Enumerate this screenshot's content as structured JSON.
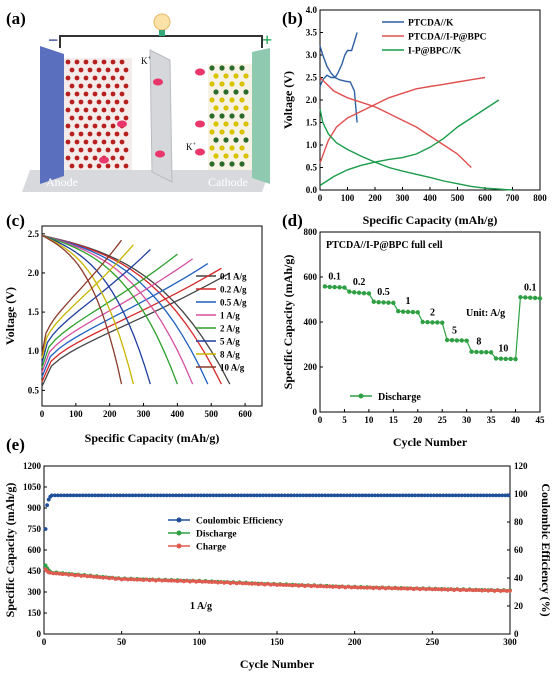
{
  "panels": {
    "a": {
      "label": "(a)",
      "anode_label": "Anode",
      "cathode_label": "Cathode",
      "ion_label_1": "K",
      "ion_label_2": "K",
      "ion_charge": "+",
      "minus_sign": "−",
      "plus_sign": "+"
    },
    "b": {
      "label": "(b)"
    },
    "c": {
      "label": "(c)"
    },
    "d": {
      "label": "(d)"
    },
    "e": {
      "label": "(e)"
    }
  },
  "colors": {
    "PTCDA_K": "#2e5fa3",
    "PTCDA_IPBPC": "#e0504f",
    "IP_BPC_K": "#1a9c4a",
    "d_series": "#2ea043",
    "e_ce": "#1f4e9b",
    "e_discharge": "#2ea043",
    "e_charge": "#e05a4f"
  },
  "chart_data": [
    {
      "id": "b",
      "type": "line",
      "xlabel": "Specific Capacity (mAh/g)",
      "ylabel": "Voltage (V)",
      "xlim": [
        0,
        800
      ],
      "ylim": [
        0,
        4.0
      ],
      "xticks": [
        0,
        100,
        200,
        300,
        400,
        500,
        600,
        700,
        800
      ],
      "yticks": [
        0.0,
        0.5,
        1.0,
        1.5,
        2.0,
        2.5,
        3.0,
        3.5,
        4.0
      ],
      "legend_position": "top-right",
      "series": [
        {
          "name": "PTCDA//K",
          "color_key": "PTCDA_K",
          "curves": [
            [
              [
                0,
                3.2
              ],
              [
                10,
                3.0
              ],
              [
                25,
                2.75
              ],
              [
                40,
                2.6
              ],
              [
                55,
                2.5
              ],
              [
                70,
                2.45
              ],
              [
                90,
                2.42
              ],
              [
                110,
                2.4
              ],
              [
                125,
                2.2
              ],
              [
                135,
                1.5
              ]
            ],
            [
              [
                0,
                2.3
              ],
              [
                10,
                2.45
              ],
              [
                25,
                2.55
              ],
              [
                40,
                2.5
              ],
              [
                55,
                2.5
              ],
              [
                65,
                2.6
              ],
              [
                80,
                2.8
              ],
              [
                90,
                3.0
              ],
              [
                100,
                3.1
              ],
              [
                115,
                3.1
              ],
              [
                125,
                3.3
              ],
              [
                135,
                3.5
              ]
            ]
          ]
        },
        {
          "name": "PTCDA//I-P@BPC",
          "color_key": "PTCDA_IPBPC",
          "curves": [
            [
              [
                0,
                2.5
              ],
              [
                50,
                2.2
              ],
              [
                100,
                2.05
              ],
              [
                150,
                1.95
              ],
              [
                200,
                1.85
              ],
              [
                250,
                1.7
              ],
              [
                300,
                1.55
              ],
              [
                350,
                1.4
              ],
              [
                400,
                1.2
              ],
              [
                450,
                1.0
              ],
              [
                500,
                0.8
              ],
              [
                550,
                0.5
              ]
            ],
            [
              [
                0,
                0.6
              ],
              [
                30,
                1.1
              ],
              [
                60,
                1.4
              ],
              [
                100,
                1.6
              ],
              [
                150,
                1.75
              ],
              [
                200,
                1.9
              ],
              [
                250,
                2.05
              ],
              [
                300,
                2.15
              ],
              [
                350,
                2.25
              ],
              [
                400,
                2.3
              ],
              [
                450,
                2.35
              ],
              [
                500,
                2.4
              ],
              [
                550,
                2.45
              ],
              [
                600,
                2.5
              ]
            ]
          ]
        },
        {
          "name": "I-P@BPC//K",
          "color_key": "IP_BPC_K",
          "curves": [
            [
              [
                0,
                1.8
              ],
              [
                10,
                1.5
              ],
              [
                30,
                1.25
              ],
              [
                60,
                1.05
              ],
              [
                100,
                0.9
              ],
              [
                150,
                0.75
              ],
              [
                200,
                0.62
              ],
              [
                250,
                0.5
              ],
              [
                300,
                0.42
              ],
              [
                350,
                0.35
              ],
              [
                400,
                0.28
              ],
              [
                450,
                0.2
              ],
              [
                500,
                0.14
              ],
              [
                550,
                0.08
              ],
              [
                600,
                0.04
              ],
              [
                650,
                0.02
              ],
              [
                700,
                0.0
              ]
            ],
            [
              [
                0,
                0.1
              ],
              [
                50,
                0.3
              ],
              [
                100,
                0.45
              ],
              [
                150,
                0.55
              ],
              [
                200,
                0.62
              ],
              [
                250,
                0.68
              ],
              [
                300,
                0.72
              ],
              [
                350,
                0.8
              ],
              [
                400,
                0.95
              ],
              [
                450,
                1.15
              ],
              [
                500,
                1.4
              ],
              [
                550,
                1.6
              ],
              [
                600,
                1.8
              ],
              [
                650,
                2.0
              ]
            ]
          ]
        }
      ]
    },
    {
      "id": "c",
      "type": "line",
      "xlabel": "Specific Capacity (mAh/g)",
      "ylabel": "Voltage (V)",
      "xlim": [
        0,
        650
      ],
      "ylim": [
        0.3,
        2.6
      ],
      "xticks": [
        0,
        100,
        200,
        300,
        400,
        500,
        600
      ],
      "yticks": [
        0.5,
        1.0,
        1.5,
        2.0,
        2.5
      ],
      "legend_position": "right",
      "series": [
        {
          "name": "0.1 A/g",
          "color": "#444444",
          "capacity": 555
        },
        {
          "name": "0.2 A/g",
          "color": "#d62728",
          "capacity": 530
        },
        {
          "name": "0.5 A/g",
          "color": "#1f5fbf",
          "capacity": 490
        },
        {
          "name": "1 A/g",
          "color": "#d64fa0",
          "capacity": 445
        },
        {
          "name": "2 A/g",
          "color": "#2ca02c",
          "capacity": 400
        },
        {
          "name": "5 A/g",
          "color": "#1f3f9f",
          "capacity": 320
        },
        {
          "name": "8 A/g",
          "color": "#c9b400",
          "capacity": 270
        },
        {
          "name": "10 A/g",
          "color": "#8b3a2a",
          "capacity": 235
        }
      ]
    },
    {
      "id": "d",
      "type": "scatter",
      "title": "PTCDA//I-P@BPC full cell",
      "xlabel": "Cycle Number",
      "ylabel": "Specific Capacity (mAh/g)",
      "xlim": [
        0,
        45
      ],
      "ylim": [
        0,
        800
      ],
      "xticks": [
        0,
        5,
        10,
        15,
        20,
        25,
        30,
        35,
        40,
        45
      ],
      "yticks": [
        0,
        200,
        400,
        600,
        800
      ],
      "unit_note": "Unit: A/g",
      "legend_position": "bottom-left",
      "series": [
        {
          "name": "Discharge",
          "color_key": "d_series",
          "x": [
            1,
            2,
            3,
            4,
            5,
            6,
            7,
            8,
            9,
            10,
            11,
            12,
            13,
            14,
            15,
            16,
            17,
            18,
            19,
            20,
            21,
            22,
            23,
            24,
            25,
            26,
            27,
            28,
            29,
            30,
            31,
            32,
            33,
            34,
            35,
            36,
            37,
            38,
            39,
            40,
            41,
            42,
            43,
            44,
            45
          ],
          "y": [
            558,
            556,
            555,
            554,
            553,
            535,
            532,
            530,
            528,
            527,
            490,
            488,
            487,
            486,
            485,
            448,
            446,
            445,
            444,
            443,
            400,
            399,
            398,
            398,
            397,
            320,
            319,
            318,
            318,
            317,
            268,
            267,
            266,
            266,
            265,
            238,
            237,
            236,
            236,
            235,
            510,
            509,
            508,
            507,
            505
          ]
        }
      ],
      "rate_labels": [
        {
          "text": "0.1",
          "x": 3,
          "y": 590
        },
        {
          "text": "0.2",
          "x": 8,
          "y": 565
        },
        {
          "text": "0.5",
          "x": 13,
          "y": 520
        },
        {
          "text": "1",
          "x": 18,
          "y": 480
        },
        {
          "text": "2",
          "x": 23,
          "y": 430
        },
        {
          "text": "5",
          "x": 27.5,
          "y": 350
        },
        {
          "text": "8",
          "x": 32.5,
          "y": 300
        },
        {
          "text": "10",
          "x": 37.5,
          "y": 270
        },
        {
          "text": "0.1",
          "x": 43,
          "y": 540
        }
      ]
    },
    {
      "id": "e",
      "type": "scatter",
      "xlabel": "Cycle Number",
      "ylabel": "Specific Capacity (mAh/g)",
      "y2label": "Coulombic Efficiency (%)",
      "xlim": [
        0,
        300
      ],
      "ylim": [
        0,
        1200
      ],
      "y2lim": [
        0,
        120
      ],
      "xticks": [
        0,
        50,
        100,
        150,
        200,
        250,
        300
      ],
      "yticks": [
        0,
        150,
        300,
        450,
        600,
        750,
        900,
        1050,
        1200
      ],
      "y2ticks": [
        0,
        20,
        40,
        60,
        80,
        100,
        120
      ],
      "annotation": "1 A/g",
      "legend_position": "center-left",
      "series": [
        {
          "name": "Coulombic Efficiency",
          "color_key": "e_ce",
          "axis": "right",
          "start": [
            [
              1,
              75
            ],
            [
              2,
              92
            ],
            [
              3,
              96
            ],
            [
              4,
              98
            ]
          ],
          "plateau": 99
        },
        {
          "name": "Discharge",
          "color_key": "e_discharge",
          "axis": "left",
          "start": [
            [
              1,
              490
            ],
            [
              2,
              470
            ],
            [
              3,
              455
            ]
          ],
          "trend": [
            [
              5,
              440
            ],
            [
              50,
              395
            ],
            [
              100,
              378
            ],
            [
              150,
              355
            ],
            [
              200,
              335
            ],
            [
              250,
              322
            ],
            [
              300,
              310
            ]
          ]
        },
        {
          "name": "Charge",
          "color_key": "e_charge",
          "axis": "left",
          "start": [
            [
              1,
              460
            ],
            [
              2,
              450
            ],
            [
              3,
              440
            ]
          ],
          "trend": [
            [
              5,
              435
            ],
            [
              50,
              392
            ],
            [
              100,
              375
            ],
            [
              150,
              352
            ],
            [
              200,
              333
            ],
            [
              250,
              320
            ],
            [
              300,
              308
            ]
          ]
        }
      ]
    }
  ]
}
